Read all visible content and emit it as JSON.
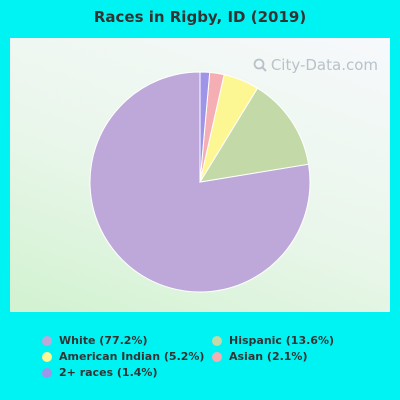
{
  "chart_data": {
    "type": "pie",
    "title": "Races in Rigby, ID (2019)",
    "slices": [
      {
        "label": "White (77.2%)",
        "value": 77.2,
        "color": "#bea8da"
      },
      {
        "label": "Hispanic (13.6%)",
        "value": 13.6,
        "color": "#c3d9a8"
      },
      {
        "label": "American Indian (5.2%)",
        "value": 5.2,
        "color": "#fdf793"
      },
      {
        "label": "Asian (2.1%)",
        "value": 2.1,
        "color": "#f5afb4"
      },
      {
        "label": "2+ races (1.4%)",
        "value": 1.4,
        "color": "#9f95e8"
      }
    ],
    "legend_placement": "bottom",
    "start_angle_deg": 0,
    "direction": "counterclockwise"
  },
  "watermark": {
    "text": "City-Data.com",
    "icon": "magnifier-icon"
  },
  "colors": {
    "background": "#00f3f3",
    "title": "#333333"
  }
}
